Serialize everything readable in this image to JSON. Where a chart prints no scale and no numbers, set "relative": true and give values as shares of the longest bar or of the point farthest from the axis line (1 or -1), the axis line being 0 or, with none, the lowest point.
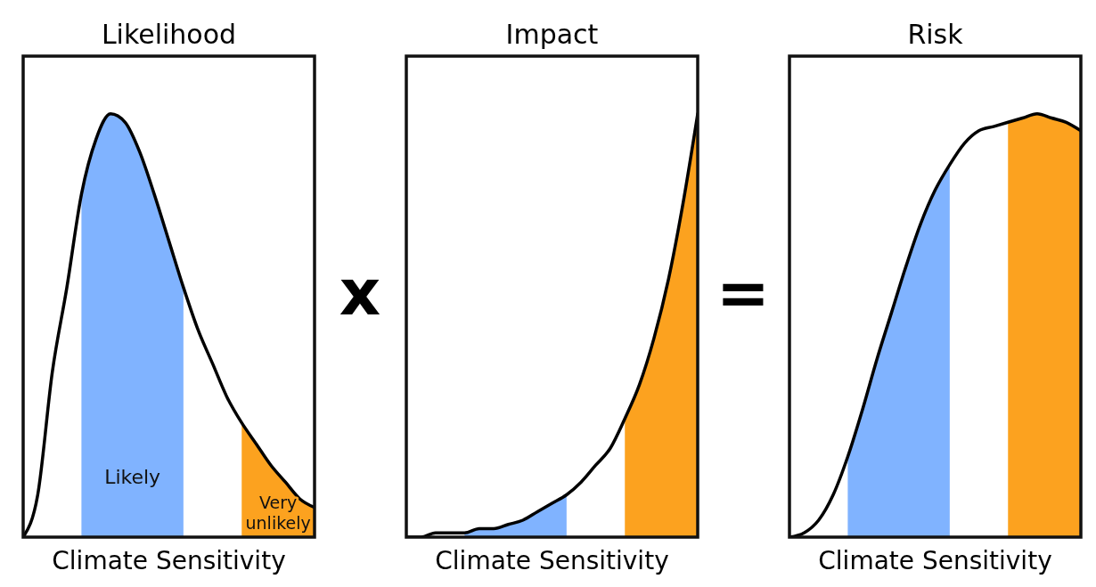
{
  "chart_data": [
    {
      "type": "line",
      "title": "Likelihood",
      "xlabel": "Climate Sensitivity",
      "relative": true,
      "annotations": [
        "x"
      ],
      "categories": [
        null,
        null,
        null,
        null,
        null,
        null,
        null,
        null,
        null,
        null,
        null,
        null,
        null,
        null,
        null,
        null,
        null,
        null,
        null,
        null,
        null
      ],
      "series": [
        {
          "type": "area",
          "name": "Likely",
          "color": "#80b3ff",
          "values": [
            null,
            null,
            null,
            null,
            0.81,
            0.94,
            1,
            0.98,
            0.91,
            0.81,
            0.7,
            0.59,
            null,
            null,
            null,
            null,
            null,
            null,
            null,
            null,
            null
          ]
        },
        {
          "type": "area",
          "name": "Very unlikely",
          "color": "#fca21f",
          "values": [
            null,
            null,
            null,
            null,
            null,
            null,
            null,
            null,
            null,
            null,
            null,
            null,
            null,
            null,
            null,
            0.27,
            0.22,
            0.17,
            0.13,
            0.09,
            0.07
          ]
        },
        {
          "color": "#000000",
          "values": [
            0,
            0.1,
            0.39,
            0.59,
            0.81,
            0.94,
            1,
            0.98,
            0.91,
            0.81,
            0.7,
            0.59,
            0.49,
            0.41,
            0.33,
            0.27,
            0.22,
            0.17,
            0.13,
            0.09,
            0.07
          ]
        }
      ]
    },
    {
      "type": "line",
      "title": "Impact",
      "xlabel": "Climate Sensitivity",
      "relative": true,
      "annotations": [
        "="
      ],
      "categories": [
        null,
        null,
        null,
        null,
        null,
        null,
        null,
        null,
        null,
        null,
        null,
        null,
        null,
        null,
        null,
        null,
        null,
        null,
        null,
        null,
        null
      ],
      "series": [
        {
          "type": "area",
          "color": "#80b3ff",
          "values": [
            null,
            null,
            null,
            null,
            0.01,
            0.02,
            0.02,
            0.03,
            0.04,
            0.06,
            0.08,
            0.1,
            null,
            null,
            null,
            null,
            null,
            null,
            null,
            null,
            null
          ]
        },
        {
          "type": "area",
          "color": "#fca21f",
          "values": [
            null,
            null,
            null,
            null,
            null,
            null,
            null,
            null,
            null,
            null,
            null,
            null,
            null,
            null,
            null,
            0.28,
            0.36,
            0.47,
            0.61,
            0.79,
            1
          ]
        },
        {
          "color": "#000000",
          "values": [
            0,
            0,
            0.01,
            0.01,
            0.01,
            0.02,
            0.02,
            0.03,
            0.04,
            0.06,
            0.08,
            0.1,
            0.13,
            0.17,
            0.21,
            0.28,
            0.36,
            0.47,
            0.61,
            0.79,
            1
          ]
        }
      ]
    },
    {
      "type": "line",
      "title": "Risk",
      "xlabel": "Climate Sensitivity",
      "relative": true,
      "categories": [
        null,
        null,
        null,
        null,
        null,
        null,
        null,
        null,
        null,
        null,
        null,
        null,
        null,
        null,
        null,
        null,
        null,
        null,
        null,
        null,
        null
      ],
      "series": [
        {
          "type": "area",
          "color": "#80b3ff",
          "values": [
            null,
            null,
            null,
            null,
            0.19,
            0.3,
            0.42,
            0.53,
            0.64,
            0.74,
            0.82,
            0.88,
            null,
            null,
            null,
            null,
            null,
            null,
            null,
            null,
            null
          ]
        },
        {
          "type": "area",
          "color": "#fca21f",
          "values": [
            null,
            null,
            null,
            null,
            null,
            null,
            null,
            null,
            null,
            null,
            null,
            null,
            null,
            null,
            null,
            0.98,
            0.99,
            1,
            0.99,
            0.98,
            0.96
          ]
        },
        {
          "color": "#000000",
          "values": [
            0,
            0.01,
            0.04,
            0.1,
            0.19,
            0.3,
            0.42,
            0.53,
            0.64,
            0.74,
            0.82,
            0.88,
            0.93,
            0.96,
            0.97,
            0.98,
            0.99,
            1,
            0.99,
            0.98,
            0.96
          ]
        }
      ]
    }
  ]
}
